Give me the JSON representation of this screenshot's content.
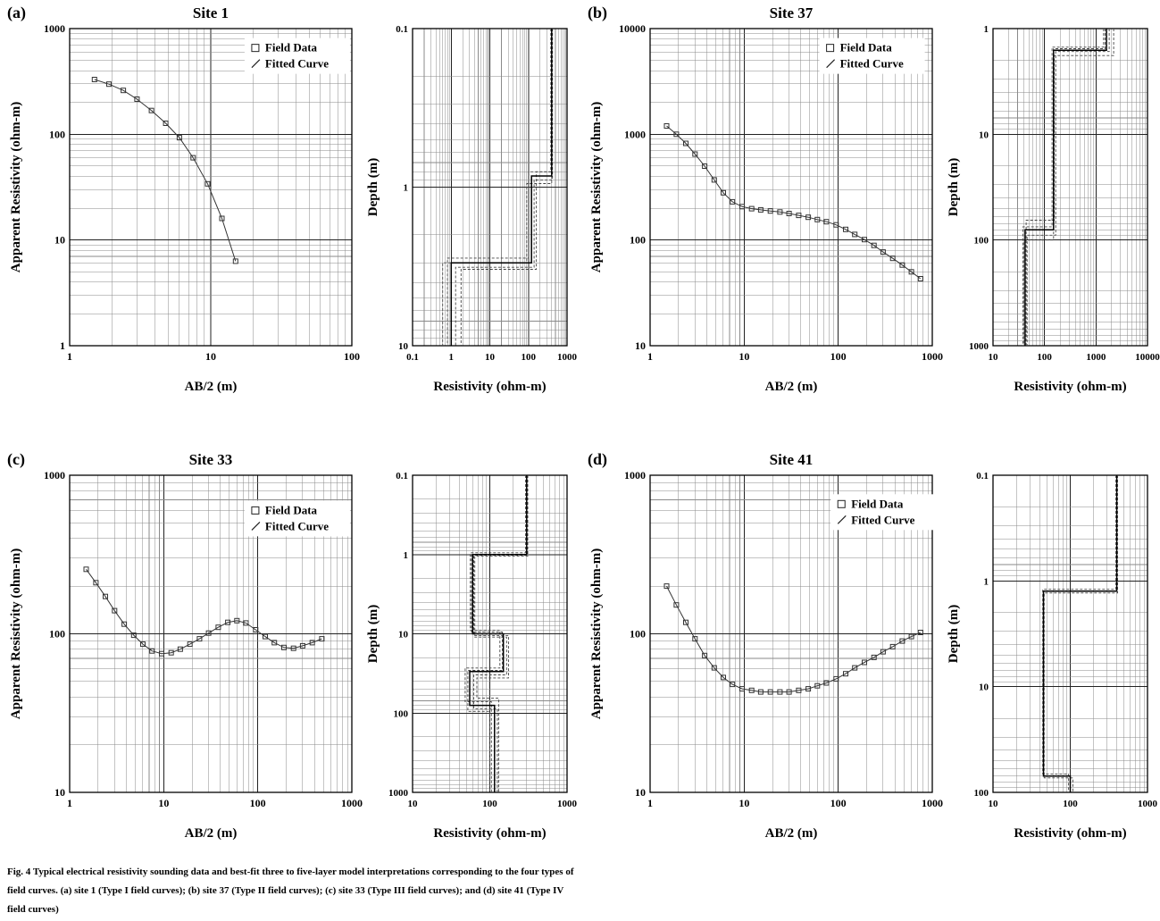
{
  "legend": {
    "field_data": "Field Data",
    "fitted_curve": "Fitted Curve"
  },
  "caption": {
    "line1": "Fig. 4 Typical electrical resistivity sounding data and best-fit three to five-layer model interpretations corresponding to the four types of",
    "line2": "field curves. (a) site 1 (Type I field curves); (b) site 37 (Type II field curves); (c) site 33 (Type III field curves); and (d) site 41 (Type IV",
    "line3": "field curves)"
  },
  "chart_data": [
    {
      "panel_label": "(a)",
      "sounding": {
        "type": "scatter",
        "kind": "sounding",
        "title": "Site 1",
        "xlabel": "AB/2 (m)",
        "ylabel": "Apparent Resistivity (ohm-m)",
        "xlim": [
          1,
          100
        ],
        "ylim": [
          1,
          1000
        ],
        "xticks": [
          1,
          10,
          100
        ],
        "yticks": [
          1,
          10,
          100,
          1000
        ],
        "legend_pos": {
          "x": 0.62,
          "y": 0.03
        },
        "points": [
          [
            1.5,
            330
          ],
          [
            1.9,
            298
          ],
          [
            2.4,
            260
          ],
          [
            3,
            215
          ],
          [
            3.8,
            168
          ],
          [
            4.8,
            127
          ],
          [
            6,
            93
          ],
          [
            7.5,
            60
          ],
          [
            9.5,
            34
          ],
          [
            12,
            16
          ],
          [
            15,
            6.3
          ]
        ]
      },
      "model": {
        "type": "line",
        "kind": "model",
        "xlabel": "Resistivity (ohm-m)",
        "ylabel": "Depth (m)",
        "xlim": [
          0.1,
          1000
        ],
        "ylim": [
          0.1,
          10
        ],
        "y_down": true,
        "xticks": [
          0.1,
          1,
          10,
          100,
          1000
        ],
        "yticks": [
          0.1,
          1,
          10
        ],
        "layers": [
          [
            400,
            0.85
          ],
          [
            120,
            3.0
          ],
          [
            1.0,
            10
          ]
        ],
        "equivalents": [
          [
            [
              380,
              0.8
            ],
            [
              100,
              2.8
            ],
            [
              0.8,
              10
            ]
          ],
          [
            [
              420,
              0.9
            ],
            [
              140,
              3.2
            ],
            [
              1.3,
              10
            ]
          ],
          [
            [
              400,
              0.95
            ],
            [
              90,
              3.0
            ],
            [
              0.6,
              10
            ]
          ],
          [
            [
              390,
              0.8
            ],
            [
              160,
              3.3
            ],
            [
              1.8,
              10
            ]
          ]
        ]
      }
    },
    {
      "panel_label": "(b)",
      "sounding": {
        "type": "scatter",
        "kind": "sounding",
        "title": "Site 37",
        "xlabel": "AB/2 (m)",
        "ylabel": "Apparent Resistivity (ohm-m)",
        "xlim": [
          1,
          1000
        ],
        "ylim": [
          10,
          10000
        ],
        "xticks": [
          1,
          10,
          100,
          1000
        ],
        "yticks": [
          10,
          100,
          1000,
          10000
        ],
        "legend_pos": {
          "x": 0.6,
          "y": 0.03
        },
        "points": [
          [
            1.5,
            1200
          ],
          [
            1.9,
            1000
          ],
          [
            2.4,
            820
          ],
          [
            3,
            650
          ],
          [
            3.8,
            500
          ],
          [
            4.8,
            370
          ],
          [
            6,
            280
          ],
          [
            7.5,
            230
          ],
          [
            9.5,
            207
          ],
          [
            12,
            198
          ],
          [
            15,
            193
          ],
          [
            19,
            188
          ],
          [
            24,
            184
          ],
          [
            30,
            178
          ],
          [
            38,
            171
          ],
          [
            48,
            164
          ],
          [
            60,
            156
          ],
          [
            75,
            149
          ],
          [
            95,
            139
          ],
          [
            120,
            126
          ],
          [
            150,
            113
          ],
          [
            190,
            101
          ],
          [
            240,
            89
          ],
          [
            300,
            77
          ],
          [
            380,
            67
          ],
          [
            480,
            58
          ],
          [
            600,
            50
          ],
          [
            750,
            43
          ]
        ]
      },
      "model": {
        "type": "line",
        "kind": "model",
        "xlabel": "Resistivity (ohm-m)",
        "ylabel": "Depth (m)",
        "xlim": [
          10,
          10000
        ],
        "ylim": [
          1,
          1000
        ],
        "y_down": true,
        "xticks": [
          10,
          100,
          1000,
          10000
        ],
        "yticks": [
          1,
          10,
          100,
          1000
        ],
        "layers": [
          [
            1600,
            1.6
          ],
          [
            150,
            80
          ],
          [
            42,
            1000
          ]
        ],
        "equivalents": [
          [
            [
              1400,
              1.5
            ],
            [
              140,
              75
            ],
            [
              38,
              1000
            ]
          ],
          [
            [
              1800,
              1.65
            ],
            [
              165,
              90
            ],
            [
              46,
              1000
            ]
          ],
          [
            [
              1500,
              1.55
            ],
            [
              150,
              100
            ],
            [
              40,
              1000
            ]
          ],
          [
            [
              2200,
              1.8
            ],
            [
              155,
              65
            ],
            [
              44,
              1000
            ]
          ]
        ]
      }
    },
    {
      "panel_label": "(c)",
      "sounding": {
        "type": "scatter",
        "kind": "sounding",
        "title": "Site 33",
        "xlabel": "AB/2 (m)",
        "ylabel": "Apparent Resistivity (ohm-m)",
        "xlim": [
          1,
          1000
        ],
        "ylim": [
          10,
          1000
        ],
        "xticks": [
          1,
          10,
          100,
          1000
        ],
        "yticks": [
          10,
          100,
          1000
        ],
        "legend_pos": {
          "x": 0.62,
          "y": 0.08
        },
        "points": [
          [
            1.5,
            255
          ],
          [
            1.9,
            210
          ],
          [
            2.4,
            172
          ],
          [
            3,
            140
          ],
          [
            3.8,
            115
          ],
          [
            4.8,
            98
          ],
          [
            6,
            86
          ],
          [
            7.5,
            78
          ],
          [
            9.5,
            75
          ],
          [
            12,
            76
          ],
          [
            15,
            80
          ],
          [
            19,
            86
          ],
          [
            24,
            93
          ],
          [
            30,
            101
          ],
          [
            38,
            110
          ],
          [
            48,
            118
          ],
          [
            60,
            121
          ],
          [
            75,
            117
          ],
          [
            95,
            106
          ],
          [
            120,
            96
          ],
          [
            150,
            88
          ],
          [
            190,
            82
          ],
          [
            240,
            81
          ],
          [
            300,
            84
          ],
          [
            380,
            88
          ],
          [
            480,
            93
          ]
        ]
      },
      "model": {
        "type": "line",
        "kind": "model",
        "xlabel": "Resistivity (ohm-m)",
        "ylabel": "Depth (m)",
        "xlim": [
          10,
          1000
        ],
        "ylim": [
          0.1,
          1000
        ],
        "y_down": true,
        "xticks": [
          10,
          100,
          1000
        ],
        "yticks": [
          0.1,
          1,
          10,
          100,
          1000
        ],
        "layers": [
          [
            300,
            1.0
          ],
          [
            60,
            10
          ],
          [
            150,
            30
          ],
          [
            55,
            80
          ],
          [
            115,
            1000
          ]
        ],
        "equivalents": [
          [
            [
              290,
              0.95
            ],
            [
              56,
              9
            ],
            [
              135,
              27
            ],
            [
              48,
              72
            ],
            [
              105,
              1000
            ]
          ],
          [
            [
              310,
              1.05
            ],
            [
              64,
              11
            ],
            [
              165,
              33
            ],
            [
              62,
              88
            ],
            [
              125,
              1000
            ]
          ],
          [
            [
              300,
              1.0
            ],
            [
              58,
              9.5
            ],
            [
              145,
              29
            ],
            [
              52,
              95
            ],
            [
              100,
              1000
            ]
          ],
          [
            [
              305,
              1.02
            ],
            [
              62,
              10.5
            ],
            [
              175,
              36
            ],
            [
              68,
              65
            ],
            [
              130,
              1000
            ]
          ]
        ]
      }
    },
    {
      "panel_label": "(d)",
      "sounding": {
        "type": "scatter",
        "kind": "sounding",
        "title": "Site 41",
        "xlabel": "AB/2 (m)",
        "ylabel": "Apparent Resistivity (ohm-m)",
        "xlim": [
          1,
          1000
        ],
        "ylim": [
          10,
          1000
        ],
        "xticks": [
          1,
          10,
          100,
          1000
        ],
        "yticks": [
          10,
          100,
          1000
        ],
        "legend_pos": {
          "x": 0.64,
          "y": 0.06
        },
        "points": [
          [
            1.5,
            200
          ],
          [
            1.9,
            152
          ],
          [
            2.4,
            118
          ],
          [
            3,
            93
          ],
          [
            3.8,
            73
          ],
          [
            4.8,
            61
          ],
          [
            6,
            53
          ],
          [
            7.5,
            48
          ],
          [
            9.5,
            45
          ],
          [
            12,
            44
          ],
          [
            15,
            43
          ],
          [
            19,
            43
          ],
          [
            24,
            43
          ],
          [
            30,
            43
          ],
          [
            38,
            44
          ],
          [
            48,
            45
          ],
          [
            60,
            47
          ],
          [
            75,
            49
          ],
          [
            95,
            52
          ],
          [
            120,
            56
          ],
          [
            150,
            61
          ],
          [
            190,
            66
          ],
          [
            240,
            71
          ],
          [
            300,
            77
          ],
          [
            380,
            83
          ],
          [
            480,
            90
          ],
          [
            600,
            96
          ],
          [
            750,
            102
          ]
        ]
      },
      "model": {
        "type": "line",
        "kind": "model",
        "xlabel": "Resistivity (ohm-m)",
        "ylabel": "Depth (m)",
        "xlim": [
          10,
          1000
        ],
        "ylim": [
          0.1,
          100
        ],
        "y_down": true,
        "xticks": [
          10,
          100,
          1000
        ],
        "yticks": [
          0.1,
          1,
          10,
          100
        ],
        "layers": [
          [
            400,
            1.25
          ],
          [
            45,
            70
          ],
          [
            100,
            100
          ]
        ],
        "equivalents": [
          [
            [
              390,
              1.2
            ],
            [
              44,
              67
            ],
            [
              95,
              100
            ]
          ],
          [
            [
              410,
              1.3
            ],
            [
              46,
              73
            ],
            [
              108,
              100
            ]
          ]
        ]
      }
    }
  ]
}
